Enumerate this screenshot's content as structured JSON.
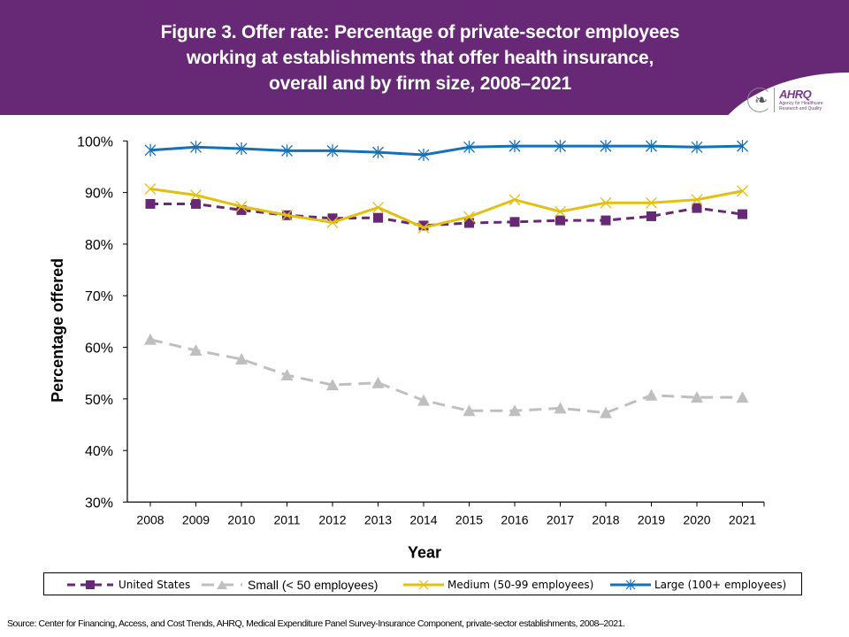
{
  "header": {
    "title_lines": [
      "Figure 3. Offer rate: Percentage of private-sector employees",
      "working at establishments that offer health insurance,",
      "overall and by firm size, 2008–2021"
    ],
    "logo": {
      "brand": "AHRQ",
      "subtitle": "Agency for Healthcare Research and Quality",
      "icon": "hhs-eagle-icon"
    }
  },
  "chart_data": {
    "type": "line",
    "title": "Figure 3. Offer rate: Percentage of private-sector employees working at establishments that offer health insurance, overall and by firm size, 2008–2021",
    "xlabel": "Year",
    "ylabel": "Percentage offered",
    "x": [
      "2008",
      "2009",
      "2010",
      "2011",
      "2012",
      "2013",
      "2014",
      "2015",
      "2016",
      "2017",
      "2018",
      "2019",
      "2020",
      "2021"
    ],
    "ylim": [
      30,
      100
    ],
    "yticks": [
      30,
      40,
      50,
      60,
      70,
      80,
      90,
      100
    ],
    "ytick_labels": [
      "30%",
      "40%",
      "50%",
      "60%",
      "70%",
      "80%",
      "90%",
      "100%"
    ],
    "grid": false,
    "legend_position": "bottom",
    "series": [
      {
        "name": "United States",
        "color": "#672875",
        "line_style": "dashed",
        "marker": "square",
        "values": [
          87.8,
          87.8,
          86.6,
          85.6,
          85.0,
          85.1,
          83.6,
          84.1,
          84.3,
          84.6,
          84.6,
          85.4,
          87.0,
          85.8
        ]
      },
      {
        "name": "Small (< 50 employees)",
        "color": "#BFBFBF",
        "line_style": "dashed",
        "marker": "triangle",
        "values": [
          61.5,
          59.4,
          57.7,
          54.6,
          52.7,
          53.1,
          49.7,
          47.7,
          47.7,
          48.2,
          47.3,
          50.7,
          50.3,
          50.3
        ]
      },
      {
        "name": "Medium (50-99 employees)",
        "color": "#E3C00E",
        "line_style": "solid",
        "marker": "x",
        "values": [
          90.7,
          89.5,
          87.3,
          85.6,
          84.2,
          87.1,
          83.2,
          85.3,
          88.6,
          86.3,
          88.0,
          88.0,
          88.6,
          90.3
        ]
      },
      {
        "name": "Large (100+ employees)",
        "color": "#1470B8",
        "line_style": "solid",
        "marker": "asterisk",
        "values": [
          98.2,
          98.8,
          98.5,
          98.1,
          98.1,
          97.8,
          97.3,
          98.8,
          99.0,
          99.0,
          99.0,
          99.0,
          98.8,
          99.0
        ]
      }
    ]
  },
  "source": "Source: Center for Financing, Access, and Cost Trends, AHRQ, Medical Expenditure Panel Survey-Insurance Component, private-sector establishments, 2008–2021."
}
